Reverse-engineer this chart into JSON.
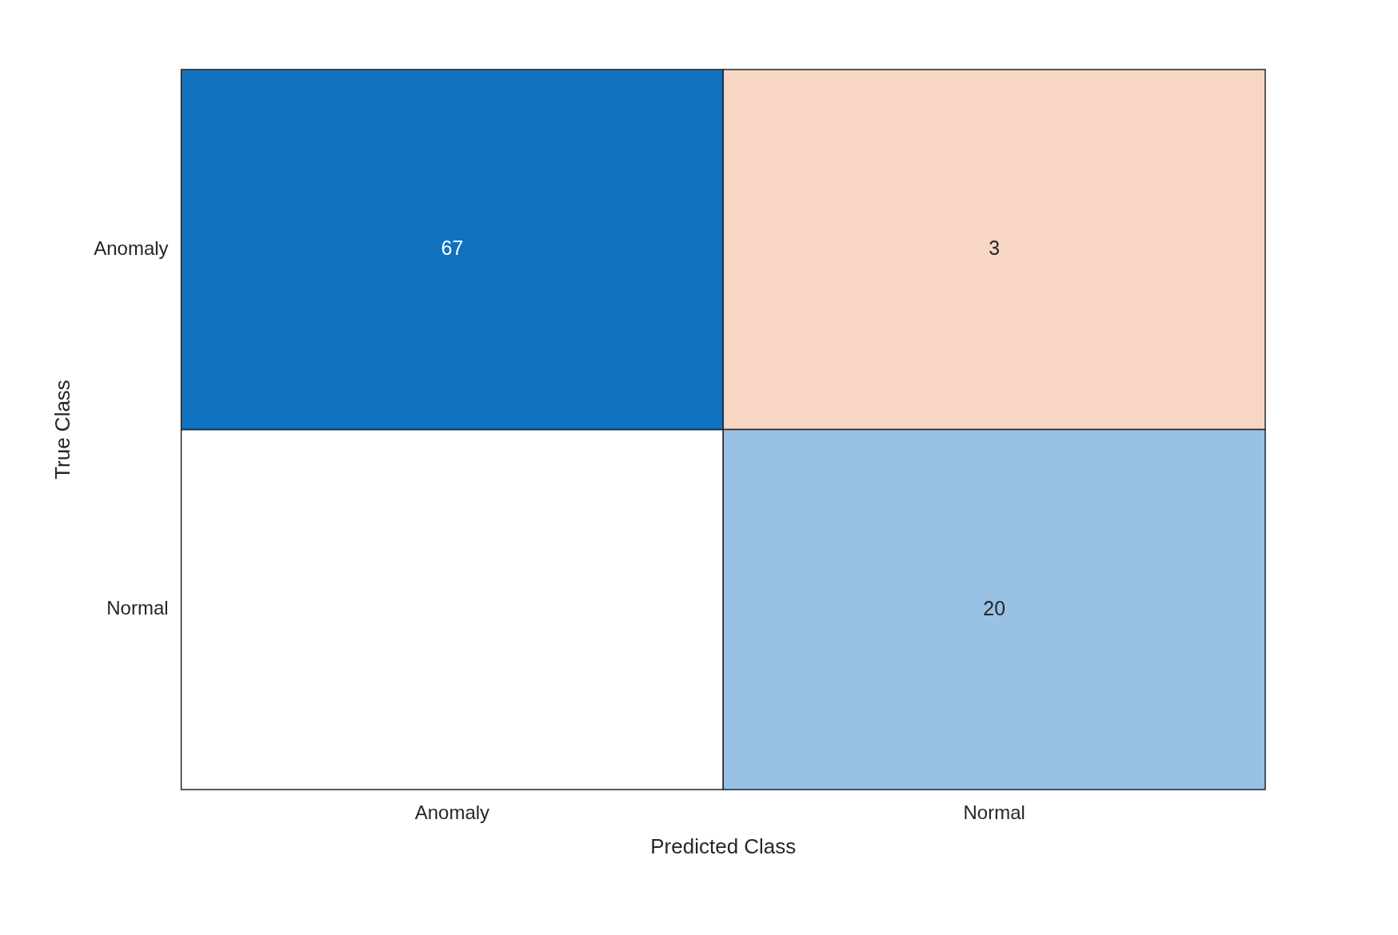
{
  "chart_data": {
    "type": "heatmap",
    "xlabel": "Predicted Class",
    "ylabel": "True Class",
    "categories": [
      "Anomaly",
      "Normal"
    ],
    "y_categories": [
      "Anomaly",
      "Normal"
    ],
    "cells": [
      [
        67,
        3
      ],
      [
        null,
        20
      ]
    ],
    "colors": [
      [
        "#1172bf",
        "#f7d6c4"
      ],
      [
        null,
        "#98c1e3"
      ]
    ],
    "data_labels": true
  }
}
